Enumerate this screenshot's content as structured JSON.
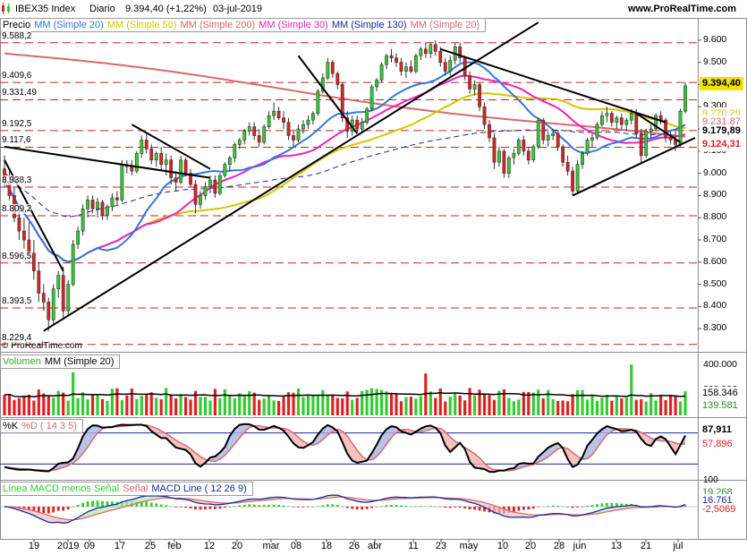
{
  "header": {
    "instrument": "IBEX35 Index",
    "period": "Diario",
    "last": "9.394,40 (+1,22%)",
    "date": "03-jul-2019",
    "site": "www.ProRealTime.com",
    "watermark": "© ProRealTime.com"
  },
  "colors": {
    "up": "#33cc33",
    "down": "#dd2222",
    "ma20": "#3377dd",
    "ma50": "#d6c600",
    "ma200": "#d96a6a",
    "ma30": "#ee22bb",
    "ma130": "#1a2aa0",
    "trend": "#000000",
    "grid": "#cc2222"
  },
  "price_panel": {
    "legend": [
      {
        "label": "Precio",
        "color": "#000000"
      },
      {
        "label": "MM (Simple 20)",
        "color": "#3377dd"
      },
      {
        "label": "MM (Simple 50)",
        "color": "#d6c600"
      },
      {
        "label": "MM (Simple 200)",
        "color": "#d96a6a"
      },
      {
        "label": "MM (Simple 30)",
        "color": "#ee22bb"
      },
      {
        "label": "MM (Simple 130)",
        "color": "#1a2aa0"
      },
      {
        "label": "MM (Simple 20)",
        "color": "#d96a6a"
      }
    ],
    "left_levels": [
      "9.588,2",
      "9.409,6",
      "9.331,49",
      "9.192,5",
      "9.117,6",
      "8.938,3",
      "8.809,2",
      "8.596,5",
      "8.393,5",
      "8.229,4"
    ],
    "right_ticks": [
      "9.600",
      "9.500",
      "9.400",
      "9.300",
      "9.200",
      "9.100",
      "9.000",
      "8.900",
      "8.800",
      "8.700",
      "8.600",
      "8.500",
      "8.400",
      "8.300"
    ],
    "last_tag": "9.394,40",
    "ma_tags": [
      "9.270,29",
      "9.231,87",
      "9.179,89",
      "9.124,31"
    ]
  },
  "volume_panel": {
    "legend": [
      {
        "label": "Volumen",
        "color": "#33aa33"
      },
      {
        "label": "MM (Simple 20)",
        "color": "#000000"
      }
    ],
    "ticks": [
      "400.000",
      "200.000"
    ],
    "tags": [
      "158.346",
      "139.581"
    ]
  },
  "stoch_panel": {
    "legend": [
      {
        "label": "%K",
        "color": "#000000"
      },
      {
        "label": "%D ( 14 3 5)",
        "color": "#d96a6a"
      }
    ],
    "tags": [
      "87,911",
      "57,896"
    ]
  },
  "macd_panel": {
    "legend": [
      {
        "label": "Línea MACD menos Señal",
        "color": "#33cc33"
      },
      {
        "label": "Señal",
        "color": "#d96a6a"
      },
      {
        "label": "MACD Line ( 12 26 9)",
        "color": "#1a2aa0"
      }
    ],
    "tags": [
      "19,268",
      "16,761",
      "-2,5069"
    ],
    "top_tick": "100"
  },
  "x_axis": {
    "labels": [
      "19",
      "2019",
      "09",
      "17",
      "25",
      "feb",
      "12",
      "20",
      "mar",
      "08",
      "18",
      "26",
      "abr",
      "11",
      "23",
      "may",
      "10",
      "20",
      "28",
      "jun",
      "13",
      "21",
      "jul"
    ]
  },
  "chart_data": {
    "type": "candlestick",
    "title": "IBEX35 Index Diario",
    "y_range": [
      8200,
      9660
    ],
    "candles": [
      {
        "d": "2018-12-12",
        "o": 9020,
        "h": 9080,
        "l": 8940,
        "c": 8960
      },
      {
        "d": "2018-12-13",
        "o": 8960,
        "h": 9010,
        "l": 8880,
        "c": 8900
      },
      {
        "d": "2018-12-14",
        "o": 8900,
        "h": 8940,
        "l": 8780,
        "c": 8800
      },
      {
        "d": "2018-12-17",
        "o": 8800,
        "h": 8860,
        "l": 8700,
        "c": 8740
      },
      {
        "d": "2018-12-18",
        "o": 8740,
        "h": 8800,
        "l": 8660,
        "c": 8700
      },
      {
        "d": "2018-12-19",
        "o": 8700,
        "h": 8780,
        "l": 8600,
        "c": 8640
      },
      {
        "d": "2018-12-20",
        "o": 8640,
        "h": 8700,
        "l": 8520,
        "c": 8560
      },
      {
        "d": "2018-12-21",
        "o": 8560,
        "h": 8600,
        "l": 8420,
        "c": 8460
      },
      {
        "d": "2018-12-24",
        "o": 8460,
        "h": 8500,
        "l": 8380,
        "c": 8420
      },
      {
        "d": "2018-12-27",
        "o": 8420,
        "h": 8440,
        "l": 8290,
        "c": 8340
      },
      {
        "d": "2018-12-28",
        "o": 8340,
        "h": 8500,
        "l": 8320,
        "c": 8480
      },
      {
        "d": "2018-12-31",
        "o": 8480,
        "h": 8560,
        "l": 8440,
        "c": 8540
      },
      {
        "d": "2019-01-02",
        "o": 8540,
        "h": 8580,
        "l": 8350,
        "c": 8380
      },
      {
        "d": "2019-01-03",
        "o": 8380,
        "h": 8520,
        "l": 8360,
        "c": 8500
      },
      {
        "d": "2019-01-04",
        "o": 8500,
        "h": 8700,
        "l": 8490,
        "c": 8680
      },
      {
        "d": "2019-01-07",
        "o": 8680,
        "h": 8760,
        "l": 8660,
        "c": 8740
      },
      {
        "d": "2019-01-08",
        "o": 8740,
        "h": 8860,
        "l": 8720,
        "c": 8840
      },
      {
        "d": "2019-01-09",
        "o": 8840,
        "h": 8900,
        "l": 8800,
        "c": 8880
      },
      {
        "d": "2019-01-10",
        "o": 8880,
        "h": 8900,
        "l": 8820,
        "c": 8840
      },
      {
        "d": "2019-01-11",
        "o": 8840,
        "h": 8890,
        "l": 8800,
        "c": 8870
      },
      {
        "d": "2019-01-14",
        "o": 8870,
        "h": 8880,
        "l": 8790,
        "c": 8810
      },
      {
        "d": "2019-01-15",
        "o": 8810,
        "h": 8860,
        "l": 8790,
        "c": 8850
      },
      {
        "d": "2019-01-16",
        "o": 8850,
        "h": 8910,
        "l": 8830,
        "c": 8890
      },
      {
        "d": "2019-01-17",
        "o": 8890,
        "h": 8920,
        "l": 8860,
        "c": 8880
      },
      {
        "d": "2019-01-18",
        "o": 8880,
        "h": 9060,
        "l": 8870,
        "c": 9040
      },
      {
        "d": "2019-01-21",
        "o": 9040,
        "h": 9060,
        "l": 9000,
        "c": 9030
      },
      {
        "d": "2019-01-22",
        "o": 9030,
        "h": 9060,
        "l": 8990,
        "c": 9010
      },
      {
        "d": "2019-01-23",
        "o": 9010,
        "h": 9100,
        "l": 9000,
        "c": 9090
      },
      {
        "d": "2019-01-24",
        "o": 9090,
        "h": 9170,
        "l": 9070,
        "c": 9150
      },
      {
        "d": "2019-01-25",
        "o": 9150,
        "h": 9180,
        "l": 9090,
        "c": 9110
      },
      {
        "d": "2019-01-28",
        "o": 9110,
        "h": 9130,
        "l": 9040,
        "c": 9060
      },
      {
        "d": "2019-01-29",
        "o": 9060,
        "h": 9100,
        "l": 9030,
        "c": 9090
      },
      {
        "d": "2019-01-30",
        "o": 9090,
        "h": 9120,
        "l": 9010,
        "c": 9040
      },
      {
        "d": "2019-01-31",
        "o": 9040,
        "h": 9090,
        "l": 8990,
        "c": 9060
      },
      {
        "d": "2019-02-01",
        "o": 9060,
        "h": 9080,
        "l": 8950,
        "c": 8980
      },
      {
        "d": "2019-02-04",
        "o": 8980,
        "h": 9010,
        "l": 8920,
        "c": 8960
      },
      {
        "d": "2019-02-05",
        "o": 8960,
        "h": 9080,
        "l": 8950,
        "c": 9060
      },
      {
        "d": "2019-02-06",
        "o": 9060,
        "h": 9070,
        "l": 8990,
        "c": 9000
      },
      {
        "d": "2019-02-07",
        "o": 9000,
        "h": 9020,
        "l": 8940,
        "c": 8950
      },
      {
        "d": "2019-02-08",
        "o": 8950,
        "h": 8970,
        "l": 8820,
        "c": 8860
      },
      {
        "d": "2019-02-11",
        "o": 8860,
        "h": 8920,
        "l": 8840,
        "c": 8900
      },
      {
        "d": "2019-02-12",
        "o": 8900,
        "h": 8960,
        "l": 8880,
        "c": 8940
      },
      {
        "d": "2019-02-13",
        "o": 8940,
        "h": 8990,
        "l": 8910,
        "c": 8970
      },
      {
        "d": "2019-02-14",
        "o": 8970,
        "h": 8990,
        "l": 8890,
        "c": 8910
      },
      {
        "d": "2019-02-15",
        "o": 8910,
        "h": 9000,
        "l": 8900,
        "c": 8990
      },
      {
        "d": "2019-02-18",
        "o": 8990,
        "h": 9050,
        "l": 8980,
        "c": 9040
      },
      {
        "d": "2019-02-19",
        "o": 9040,
        "h": 9080,
        "l": 9010,
        "c": 9070
      },
      {
        "d": "2019-02-20",
        "o": 9070,
        "h": 9140,
        "l": 9050,
        "c": 9130
      },
      {
        "d": "2019-02-21",
        "o": 9130,
        "h": 9160,
        "l": 9110,
        "c": 9150
      },
      {
        "d": "2019-02-22",
        "o": 9150,
        "h": 9200,
        "l": 9130,
        "c": 9190
      },
      {
        "d": "2019-02-25",
        "o": 9190,
        "h": 9230,
        "l": 9170,
        "c": 9210
      },
      {
        "d": "2019-02-26",
        "o": 9210,
        "h": 9230,
        "l": 9150,
        "c": 9170
      },
      {
        "d": "2019-02-27",
        "o": 9170,
        "h": 9200,
        "l": 9120,
        "c": 9140
      },
      {
        "d": "2019-02-28",
        "o": 9140,
        "h": 9220,
        "l": 9130,
        "c": 9210
      },
      {
        "d": "2019-03-01",
        "o": 9210,
        "h": 9280,
        "l": 9200,
        "c": 9260
      },
      {
        "d": "2019-03-04",
        "o": 9260,
        "h": 9320,
        "l": 9240,
        "c": 9280
      },
      {
        "d": "2019-03-05",
        "o": 9280,
        "h": 9300,
        "l": 9240,
        "c": 9250
      },
      {
        "d": "2019-03-06",
        "o": 9250,
        "h": 9280,
        "l": 9200,
        "c": 9230
      },
      {
        "d": "2019-03-07",
        "o": 9230,
        "h": 9250,
        "l": 9150,
        "c": 9170
      },
      {
        "d": "2019-03-08",
        "o": 9170,
        "h": 9190,
        "l": 9120,
        "c": 9150
      },
      {
        "d": "2019-03-11",
        "o": 9150,
        "h": 9220,
        "l": 9140,
        "c": 9200
      },
      {
        "d": "2019-03-12",
        "o": 9200,
        "h": 9240,
        "l": 9180,
        "c": 9220
      },
      {
        "d": "2019-03-13",
        "o": 9220,
        "h": 9260,
        "l": 9200,
        "c": 9240
      },
      {
        "d": "2019-03-14",
        "o": 9240,
        "h": 9280,
        "l": 9220,
        "c": 9270
      },
      {
        "d": "2019-03-15",
        "o": 9270,
        "h": 9380,
        "l": 9260,
        "c": 9370
      },
      {
        "d": "2019-03-18",
        "o": 9370,
        "h": 9450,
        "l": 9360,
        "c": 9430
      },
      {
        "d": "2019-03-19",
        "o": 9430,
        "h": 9520,
        "l": 9420,
        "c": 9500
      },
      {
        "d": "2019-03-20",
        "o": 9500,
        "h": 9510,
        "l": 9430,
        "c": 9450
      },
      {
        "d": "2019-03-21",
        "o": 9450,
        "h": 9460,
        "l": 9380,
        "c": 9400
      },
      {
        "d": "2019-03-22",
        "o": 9400,
        "h": 9410,
        "l": 9230,
        "c": 9250
      },
      {
        "d": "2019-03-25",
        "o": 9250,
        "h": 9280,
        "l": 9160,
        "c": 9190
      },
      {
        "d": "2019-03-26",
        "o": 9190,
        "h": 9260,
        "l": 9170,
        "c": 9240
      },
      {
        "d": "2019-03-27",
        "o": 9240,
        "h": 9260,
        "l": 9180,
        "c": 9200
      },
      {
        "d": "2019-03-28",
        "o": 9200,
        "h": 9250,
        "l": 9180,
        "c": 9230
      },
      {
        "d": "2019-03-29",
        "o": 9230,
        "h": 9300,
        "l": 9220,
        "c": 9290
      },
      {
        "d": "2019-04-01",
        "o": 9290,
        "h": 9400,
        "l": 9280,
        "c": 9390
      },
      {
        "d": "2019-04-02",
        "o": 9390,
        "h": 9430,
        "l": 9370,
        "c": 9420
      },
      {
        "d": "2019-04-03",
        "o": 9420,
        "h": 9500,
        "l": 9410,
        "c": 9490
      },
      {
        "d": "2019-04-04",
        "o": 9490,
        "h": 9540,
        "l": 9470,
        "c": 9530
      },
      {
        "d": "2019-04-05",
        "o": 9530,
        "h": 9560,
        "l": 9500,
        "c": 9520
      },
      {
        "d": "2019-04-08",
        "o": 9520,
        "h": 9540,
        "l": 9480,
        "c": 9500
      },
      {
        "d": "2019-04-09",
        "o": 9500,
        "h": 9520,
        "l": 9440,
        "c": 9460
      },
      {
        "d": "2019-04-10",
        "o": 9460,
        "h": 9500,
        "l": 9430,
        "c": 9480
      },
      {
        "d": "2019-04-11",
        "o": 9480,
        "h": 9510,
        "l": 9450,
        "c": 9460
      },
      {
        "d": "2019-04-12",
        "o": 9460,
        "h": 9540,
        "l": 9450,
        "c": 9530
      },
      {
        "d": "2019-04-15",
        "o": 9530,
        "h": 9570,
        "l": 9510,
        "c": 9560
      },
      {
        "d": "2019-04-16",
        "o": 9560,
        "h": 9590,
        "l": 9520,
        "c": 9540
      },
      {
        "d": "2019-04-17",
        "o": 9540,
        "h": 9590,
        "l": 9520,
        "c": 9580
      },
      {
        "d": "2019-04-18",
        "o": 9580,
        "h": 9600,
        "l": 9530,
        "c": 9550
      },
      {
        "d": "2019-04-23",
        "o": 9550,
        "h": 9570,
        "l": 9480,
        "c": 9500
      },
      {
        "d": "2019-04-24",
        "o": 9500,
        "h": 9520,
        "l": 9440,
        "c": 9460
      },
      {
        "d": "2019-04-25",
        "o": 9460,
        "h": 9530,
        "l": 9440,
        "c": 9510
      },
      {
        "d": "2019-04-26",
        "o": 9510,
        "h": 9590,
        "l": 9490,
        "c": 9570
      },
      {
        "d": "2019-04-29",
        "o": 9570,
        "h": 9590,
        "l": 9500,
        "c": 9520
      },
      {
        "d": "2019-04-30",
        "o": 9520,
        "h": 9530,
        "l": 9420,
        "c": 9440
      },
      {
        "d": "2019-05-02",
        "o": 9440,
        "h": 9460,
        "l": 9360,
        "c": 9380
      },
      {
        "d": "2019-05-03",
        "o": 9380,
        "h": 9420,
        "l": 9350,
        "c": 9400
      },
      {
        "d": "2019-05-06",
        "o": 9400,
        "h": 9410,
        "l": 9280,
        "c": 9300
      },
      {
        "d": "2019-05-07",
        "o": 9300,
        "h": 9320,
        "l": 9200,
        "c": 9220
      },
      {
        "d": "2019-05-08",
        "o": 9220,
        "h": 9240,
        "l": 9140,
        "c": 9160
      },
      {
        "d": "2019-05-09",
        "o": 9160,
        "h": 9180,
        "l": 9020,
        "c": 9050
      },
      {
        "d": "2019-05-10",
        "o": 9050,
        "h": 9120,
        "l": 9030,
        "c": 9100
      },
      {
        "d": "2019-05-13",
        "o": 9100,
        "h": 9110,
        "l": 8980,
        "c": 9000
      },
      {
        "d": "2019-05-14",
        "o": 9000,
        "h": 9080,
        "l": 8980,
        "c": 9070
      },
      {
        "d": "2019-05-15",
        "o": 9070,
        "h": 9110,
        "l": 9040,
        "c": 9090
      },
      {
        "d": "2019-05-16",
        "o": 9090,
        "h": 9160,
        "l": 9080,
        "c": 9150
      },
      {
        "d": "2019-05-17",
        "o": 9150,
        "h": 9170,
        "l": 9080,
        "c": 9100
      },
      {
        "d": "2019-05-20",
        "o": 9100,
        "h": 9120,
        "l": 9040,
        "c": 9060
      },
      {
        "d": "2019-05-21",
        "o": 9060,
        "h": 9130,
        "l": 9050,
        "c": 9120
      },
      {
        "d": "2019-05-22",
        "o": 9120,
        "h": 9250,
        "l": 9110,
        "c": 9240
      },
      {
        "d": "2019-05-23",
        "o": 9240,
        "h": 9250,
        "l": 9130,
        "c": 9150
      },
      {
        "d": "2019-05-24",
        "o": 9150,
        "h": 9190,
        "l": 9120,
        "c": 9170
      },
      {
        "d": "2019-05-27",
        "o": 9170,
        "h": 9200,
        "l": 9150,
        "c": 9180
      },
      {
        "d": "2019-05-28",
        "o": 9180,
        "h": 9190,
        "l": 9100,
        "c": 9120
      },
      {
        "d": "2019-05-29",
        "o": 9120,
        "h": 9130,
        "l": 9030,
        "c": 9050
      },
      {
        "d": "2019-05-30",
        "o": 9050,
        "h": 9080,
        "l": 8990,
        "c": 9010
      },
      {
        "d": "2019-05-31",
        "o": 9010,
        "h": 9030,
        "l": 8900,
        "c": 8920
      },
      {
        "d": "2019-06-03",
        "o": 8920,
        "h": 9060,
        "l": 8910,
        "c": 9040
      },
      {
        "d": "2019-06-04",
        "o": 9040,
        "h": 9100,
        "l": 9020,
        "c": 9090
      },
      {
        "d": "2019-06-05",
        "o": 9090,
        "h": 9160,
        "l": 9080,
        "c": 9150
      },
      {
        "d": "2019-06-06",
        "o": 9150,
        "h": 9180,
        "l": 9120,
        "c": 9160
      },
      {
        "d": "2019-06-07",
        "o": 9160,
        "h": 9230,
        "l": 9150,
        "c": 9220
      },
      {
        "d": "2019-06-10",
        "o": 9220,
        "h": 9280,
        "l": 9210,
        "c": 9260
      },
      {
        "d": "2019-06-11",
        "o": 9260,
        "h": 9300,
        "l": 9230,
        "c": 9270
      },
      {
        "d": "2019-06-12",
        "o": 9270,
        "h": 9280,
        "l": 9210,
        "c": 9230
      },
      {
        "d": "2019-06-13",
        "o": 9230,
        "h": 9260,
        "l": 9200,
        "c": 9250
      },
      {
        "d": "2019-06-14",
        "o": 9250,
        "h": 9270,
        "l": 9200,
        "c": 9220
      },
      {
        "d": "2019-06-17",
        "o": 9220,
        "h": 9250,
        "l": 9190,
        "c": 9240
      },
      {
        "d": "2019-06-18",
        "o": 9240,
        "h": 9290,
        "l": 9220,
        "c": 9270
      },
      {
        "d": "2019-06-19",
        "o": 9270,
        "h": 9290,
        "l": 9160,
        "c": 9180
      },
      {
        "d": "2019-06-20",
        "o": 9180,
        "h": 9200,
        "l": 9050,
        "c": 9080
      },
      {
        "d": "2019-06-21",
        "o": 9080,
        "h": 9200,
        "l": 9070,
        "c": 9190
      },
      {
        "d": "2019-06-24",
        "o": 9190,
        "h": 9220,
        "l": 9160,
        "c": 9200
      },
      {
        "d": "2019-06-25",
        "o": 9200,
        "h": 9270,
        "l": 9190,
        "c": 9260
      },
      {
        "d": "2019-06-26",
        "o": 9260,
        "h": 9280,
        "l": 9220,
        "c": 9240
      },
      {
        "d": "2019-06-27",
        "o": 9240,
        "h": 9250,
        "l": 9140,
        "c": 9160
      },
      {
        "d": "2019-06-28",
        "o": 9160,
        "h": 9190,
        "l": 9130,
        "c": 9150
      },
      {
        "d": "2019-07-01",
        "o": 9150,
        "h": 9200,
        "l": 9100,
        "c": 9130
      },
      {
        "d": "2019-07-02",
        "o": 9130,
        "h": 9290,
        "l": 9120,
        "c": 9280
      },
      {
        "d": "2019-07-03",
        "o": 9280,
        "h": 9410,
        "l": 9270,
        "c": 9394.4
      }
    ]
  }
}
